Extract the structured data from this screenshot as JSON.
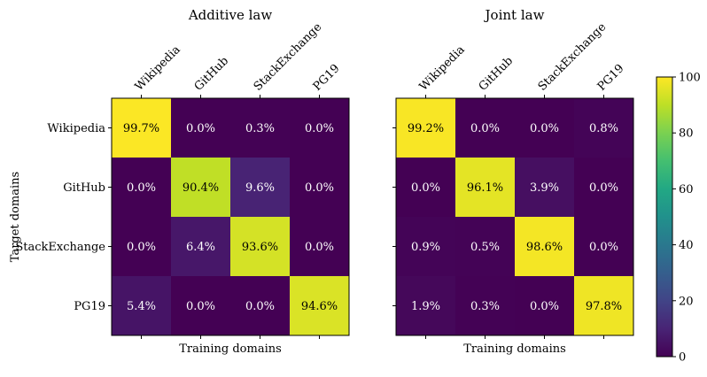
{
  "chart_data": {
    "type": "heatmap",
    "xlabel": "Training domains",
    "ylabel": "Target domains",
    "domains": [
      "Wikipedia",
      "GitHub",
      "StackExchange",
      "PG19"
    ],
    "value_range": [
      0,
      100
    ],
    "colorbar": {
      "ticks": [
        "0",
        "20",
        "40",
        "60",
        "80",
        "100"
      ],
      "colormap": "viridis"
    },
    "panels": [
      {
        "title": "Additive law",
        "values": [
          [
            99.7,
            0.0,
            0.3,
            0.0
          ],
          [
            0.0,
            90.4,
            9.6,
            0.0
          ],
          [
            0.0,
            6.4,
            93.6,
            0.0
          ],
          [
            5.4,
            0.0,
            0.0,
            94.6
          ]
        ],
        "labels": [
          [
            "99.7%",
            "0.0%",
            "0.3%",
            "0.0%"
          ],
          [
            "0.0%",
            "90.4%",
            "9.6%",
            "0.0%"
          ],
          [
            "0.0%",
            "6.4%",
            "93.6%",
            "0.0%"
          ],
          [
            "5.4%",
            "0.0%",
            "0.0%",
            "94.6%"
          ]
        ]
      },
      {
        "title": "Joint law",
        "values": [
          [
            99.2,
            0.0,
            0.0,
            0.8
          ],
          [
            0.0,
            96.1,
            3.9,
            0.0
          ],
          [
            0.9,
            0.5,
            98.6,
            0.0
          ],
          [
            1.9,
            0.3,
            0.0,
            97.8
          ]
        ],
        "labels": [
          [
            "99.2%",
            "0.0%",
            "0.0%",
            "0.8%"
          ],
          [
            "0.0%",
            "96.1%",
            "3.9%",
            "0.0%"
          ],
          [
            "0.9%",
            "0.5%",
            "98.6%",
            "0.0%"
          ],
          [
            "1.9%",
            "0.3%",
            "0.0%",
            "97.8%"
          ]
        ]
      }
    ]
  }
}
